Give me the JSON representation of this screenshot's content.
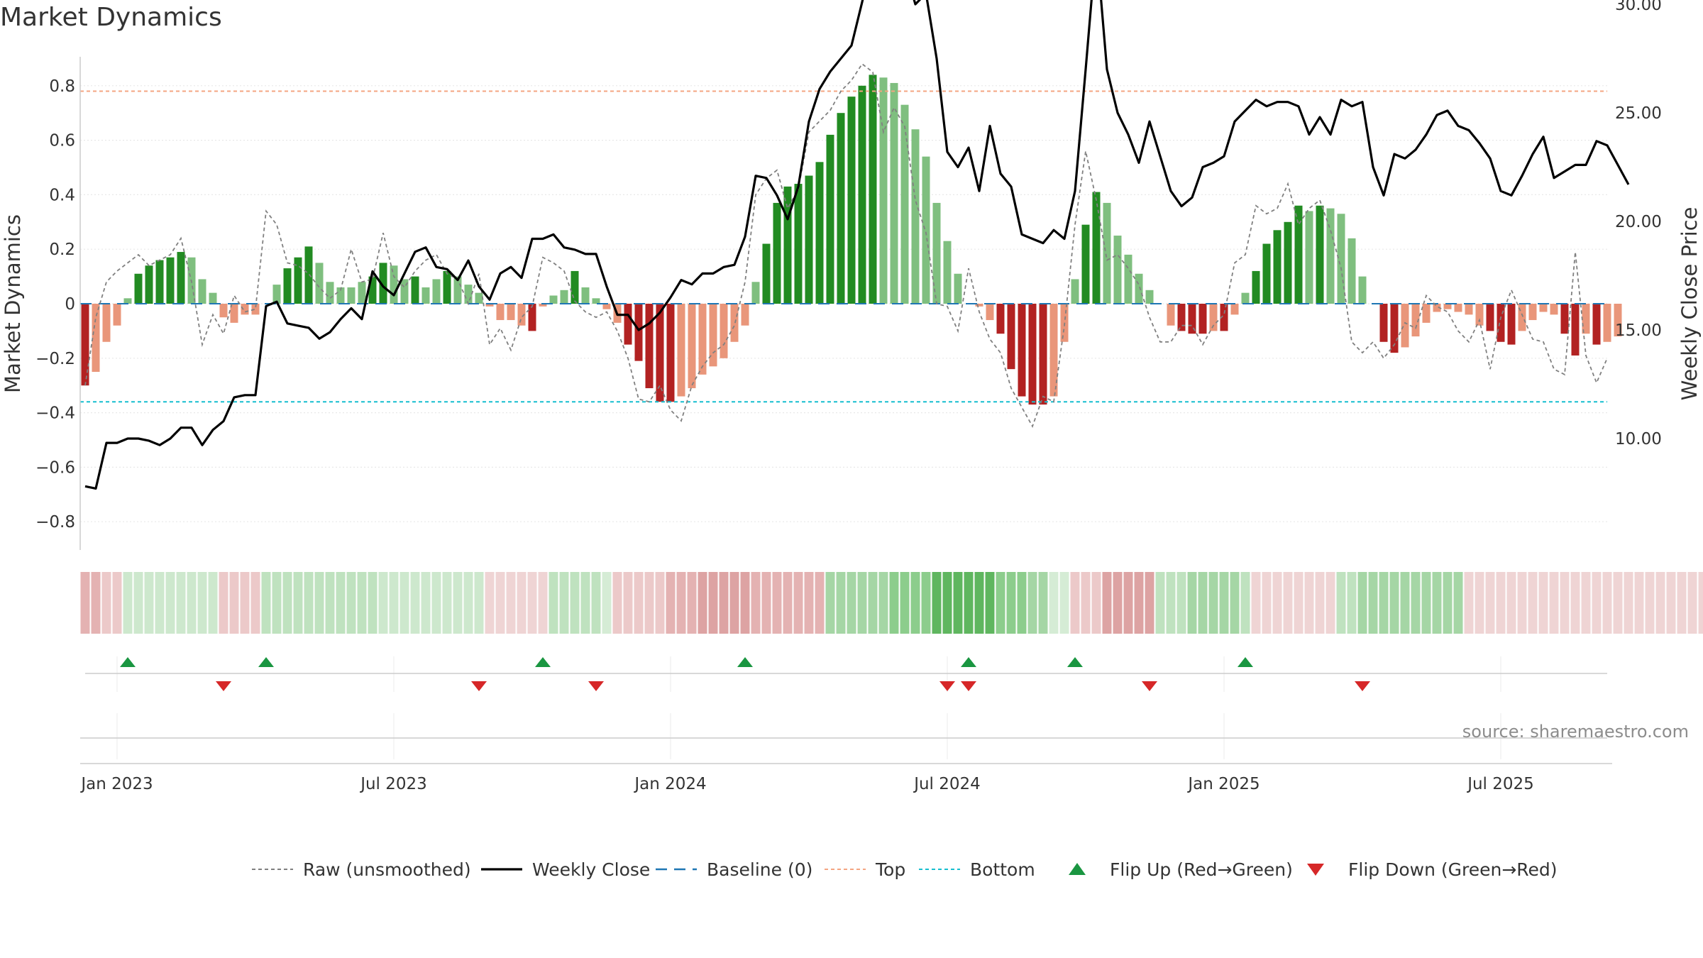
{
  "chart_data": {
    "type": "bar",
    "title": "Market Dynamics",
    "ylabel": "Market Dynamics",
    "y2label": "Weekly Close Price",
    "source": "source: sharemaestro.com",
    "ylim": [
      -0.9,
      0.9
    ],
    "y2lim": [
      6.0,
      34.0
    ],
    "yticks": [
      -0.8,
      -0.6,
      -0.4,
      -0.2,
      0,
      0.2,
      0.4,
      0.6,
      0.8
    ],
    "ytick_labels": [
      "−0.8",
      "−0.6",
      "−0.4",
      "−0.2",
      "0",
      "0.2",
      "0.4",
      "0.6",
      "0.8"
    ],
    "y2ticks": [
      10,
      15,
      20,
      25,
      30
    ],
    "y2tick_labels": [
      "10.00",
      "15.00",
      "20.00",
      "25.00",
      "30.00"
    ],
    "xticks": [
      {
        "label": "Jan 2023",
        "week": 3
      },
      {
        "label": "Jul 2023",
        "week": 29
      },
      {
        "label": "Jan 2024",
        "week": 55
      },
      {
        "label": "Jul 2024",
        "week": 81
      },
      {
        "label": "Jan 2025",
        "week": 107
      },
      {
        "label": "Jul 2025",
        "week": 133
      }
    ],
    "top_level": 0.78,
    "bottom_level": -0.36,
    "colors": {
      "strong_green": "#228b22",
      "light_green": "#7fbf7f",
      "strong_red": "#b22222",
      "light_red": "#e9967a",
      "weekly_close": "#000000",
      "raw": "#808080",
      "baseline": "#1f77b4",
      "top": "#f4a582",
      "bottom": "#17becf",
      "flip_up": "#1a9641",
      "flip_down": "#d62728"
    },
    "series": [
      {
        "name": "Market Dynamics",
        "values": [
          -0.3,
          -0.25,
          -0.14,
          -0.08,
          0.02,
          0.11,
          0.14,
          0.16,
          0.17,
          0.19,
          0.17,
          0.09,
          0.04,
          -0.05,
          -0.07,
          -0.04,
          -0.04,
          0.0,
          0.07,
          0.13,
          0.17,
          0.21,
          0.15,
          0.08,
          0.06,
          0.06,
          0.08,
          0.1,
          0.15,
          0.14,
          0.09,
          0.1,
          0.06,
          0.09,
          0.12,
          0.1,
          0.07,
          0.04,
          -0.01,
          -0.06,
          -0.06,
          -0.08,
          -0.1,
          -0.01,
          0.03,
          0.05,
          0.12,
          0.06,
          0.02,
          -0.02,
          -0.07,
          -0.15,
          -0.21,
          -0.31,
          -0.36,
          -0.36,
          -0.34,
          -0.31,
          -0.26,
          -0.23,
          -0.2,
          -0.14,
          -0.08,
          0.08,
          0.22,
          0.37,
          0.43,
          0.44,
          0.47,
          0.52,
          0.62,
          0.7,
          0.76,
          0.8,
          0.84,
          0.83,
          0.81,
          0.73,
          0.64,
          0.54,
          0.37,
          0.23,
          0.11,
          0.0,
          -0.01,
          -0.06,
          -0.11,
          -0.24,
          -0.34,
          -0.37,
          -0.37,
          -0.34,
          -0.14,
          0.09,
          0.29,
          0.41,
          0.37,
          0.25,
          0.18,
          0.11,
          0.05,
          0.0,
          -0.08,
          -0.1,
          -0.11,
          -0.11,
          -0.1,
          -0.1,
          -0.04,
          0.04,
          0.12,
          0.22,
          0.27,
          0.3,
          0.36,
          0.34,
          0.36,
          0.35,
          0.33,
          0.24,
          0.1,
          0.0,
          -0.14,
          -0.18,
          -0.16,
          -0.12,
          -0.07,
          -0.03,
          -0.02,
          -0.03,
          -0.04,
          -0.08,
          -0.1,
          -0.14,
          -0.15,
          -0.1,
          -0.06,
          -0.03,
          -0.04,
          -0.11,
          -0.19,
          -0.11,
          -0.15,
          -0.14,
          -0.12
        ]
      },
      {
        "name": "Raw (unsmoothed)",
        "values": [
          -0.3,
          -0.05,
          0.08,
          0.12,
          0.15,
          0.18,
          0.14,
          0.16,
          0.18,
          0.24,
          0.08,
          -0.15,
          -0.04,
          -0.11,
          0.03,
          -0.03,
          -0.02,
          0.34,
          0.29,
          0.15,
          0.14,
          0.11,
          0.06,
          0.02,
          0.05,
          0.2,
          0.08,
          0.09,
          0.26,
          0.1,
          0.06,
          0.12,
          0.16,
          0.18,
          0.11,
          0.09,
          0.0,
          0.11,
          -0.15,
          -0.09,
          -0.17,
          -0.05,
          -0.01,
          0.17,
          0.15,
          0.12,
          0.01,
          -0.03,
          -0.05,
          -0.03,
          -0.1,
          -0.2,
          -0.35,
          -0.36,
          -0.3,
          -0.39,
          -0.43,
          -0.3,
          -0.23,
          -0.18,
          -0.15,
          -0.08,
          0.08,
          0.4,
          0.46,
          0.49,
          0.35,
          0.42,
          0.63,
          0.67,
          0.71,
          0.78,
          0.82,
          0.88,
          0.85,
          0.63,
          0.72,
          0.65,
          0.38,
          0.26,
          0.0,
          -0.01,
          -0.1,
          0.13,
          -0.03,
          -0.13,
          -0.18,
          -0.31,
          -0.38,
          -0.45,
          -0.34,
          -0.36,
          -0.08,
          0.29,
          0.56,
          0.38,
          0.16,
          0.18,
          0.13,
          0.07,
          -0.05,
          -0.14,
          -0.14,
          -0.08,
          -0.08,
          -0.15,
          -0.08,
          -0.04,
          0.15,
          0.18,
          0.36,
          0.33,
          0.35,
          0.44,
          0.29,
          0.35,
          0.38,
          0.27,
          0.13,
          -0.14,
          -0.18,
          -0.14,
          -0.2,
          -0.15,
          -0.07,
          -0.09,
          0.03,
          -0.01,
          -0.03,
          -0.1,
          -0.14,
          -0.06,
          -0.24,
          -0.05,
          0.05,
          -0.04,
          -0.13,
          -0.14,
          -0.24,
          -0.26,
          0.19,
          -0.19,
          -0.29,
          -0.2
        ]
      },
      {
        "name": "Weekly Close",
        "values": [
          7.8,
          7.7,
          9.8,
          9.8,
          10.0,
          10.0,
          9.9,
          9.7,
          10.0,
          10.5,
          10.5,
          9.7,
          10.4,
          10.8,
          11.9,
          12.0,
          12.0,
          16.1,
          16.3,
          15.3,
          15.2,
          15.1,
          14.6,
          14.9,
          15.5,
          16.0,
          15.5,
          17.7,
          17.0,
          16.6,
          17.6,
          18.6,
          18.8,
          17.9,
          17.8,
          17.3,
          18.2,
          17.0,
          16.4,
          17.6,
          17.9,
          17.4,
          19.2,
          19.2,
          19.4,
          18.8,
          18.7,
          18.5,
          18.5,
          17.0,
          15.7,
          15.7,
          15.0,
          15.3,
          15.8,
          16.5,
          17.3,
          17.1,
          17.6,
          17.6,
          17.9,
          18.0,
          19.3,
          22.1,
          22.0,
          21.2,
          20.1,
          21.6,
          24.6,
          26.1,
          26.9,
          27.5,
          28.1,
          30.1,
          32.2,
          32.5,
          31.6,
          31.7,
          30.0,
          30.5,
          27.5,
          23.2,
          22.5,
          23.4,
          21.4,
          24.4,
          22.2,
          21.6,
          19.4,
          19.2,
          19.0,
          19.6,
          19.2,
          21.4,
          27.0,
          32.8,
          27.0,
          25.0,
          24.0,
          22.7,
          24.6,
          23.0,
          21.4,
          20.7,
          21.1,
          22.5,
          22.7,
          23.0,
          24.6,
          25.1,
          25.6,
          25.3,
          25.5,
          25.5,
          25.3,
          24.0,
          24.8,
          24.0,
          25.6,
          25.3,
          25.5,
          22.5,
          21.2,
          23.1,
          22.9,
          23.3,
          24.0,
          24.9,
          25.1,
          24.4,
          24.2,
          23.6,
          22.9,
          21.4,
          21.2,
          22.1,
          23.1,
          23.9,
          22.0,
          22.3,
          22.6,
          22.6,
          23.7,
          23.5,
          22.6,
          21.7
        ]
      }
    ],
    "strip": [
      {
        "color": "#e4b2b2",
        "n": 2
      },
      {
        "color": "#ecc9c9",
        "n": 2
      },
      {
        "color": "#cde8cd",
        "n": 9
      },
      {
        "color": "#ecc9c9",
        "n": 4
      },
      {
        "color": "#bfe2bf",
        "n": 11
      },
      {
        "color": "#cde8cd",
        "n": 10
      },
      {
        "color": "#efd4d4",
        "n": 6
      },
      {
        "color": "#bfe2bf",
        "n": 5
      },
      {
        "color": "#d5ecd5",
        "n": 1
      },
      {
        "color": "#ecc9c9",
        "n": 5
      },
      {
        "color": "#e4b2b2",
        "n": 3
      },
      {
        "color": "#dda3a3",
        "n": 5
      },
      {
        "color": "#e4b2b2",
        "n": 7
      },
      {
        "color": "#a5d6a5",
        "n": 6
      },
      {
        "color": "#8ccd8c",
        "n": 4
      },
      {
        "color": "#5fb65f",
        "n": 6
      },
      {
        "color": "#8ccd8c",
        "n": 3
      },
      {
        "color": "#a5d6a5",
        "n": 2
      },
      {
        "color": "#d5ecd5",
        "n": 2
      },
      {
        "color": "#ecc9c9",
        "n": 3
      },
      {
        "color": "#dda3a3",
        "n": 5
      },
      {
        "color": "#bfe2bf",
        "n": 3
      },
      {
        "color": "#a5d6a5",
        "n": 5
      },
      {
        "color": "#bfe2bf",
        "n": 1
      },
      {
        "color": "#efd4d4",
        "n": 8
      },
      {
        "color": "#bfe2bf",
        "n": 2
      },
      {
        "color": "#a5d6a5",
        "n": 10
      },
      {
        "color": "#efd4d4",
        "n": 23
      }
    ],
    "flips_up": [
      4,
      17,
      43,
      62,
      83,
      93,
      109
    ],
    "flips_down": [
      13,
      37,
      48,
      81,
      83,
      100,
      120
    ],
    "legend": [
      {
        "name": "Raw (unsmoothed)",
        "kind": "raw"
      },
      {
        "name": "Weekly Close",
        "kind": "close"
      },
      {
        "name": "Baseline (0)",
        "kind": "baseline"
      },
      {
        "name": "Top",
        "kind": "top"
      },
      {
        "name": "Bottom",
        "kind": "bottom"
      },
      {
        "name": "Flip Up (Red→Green)",
        "kind": "flipup"
      },
      {
        "name": "Flip Down (Green→Red)",
        "kind": "flipdown"
      }
    ]
  }
}
